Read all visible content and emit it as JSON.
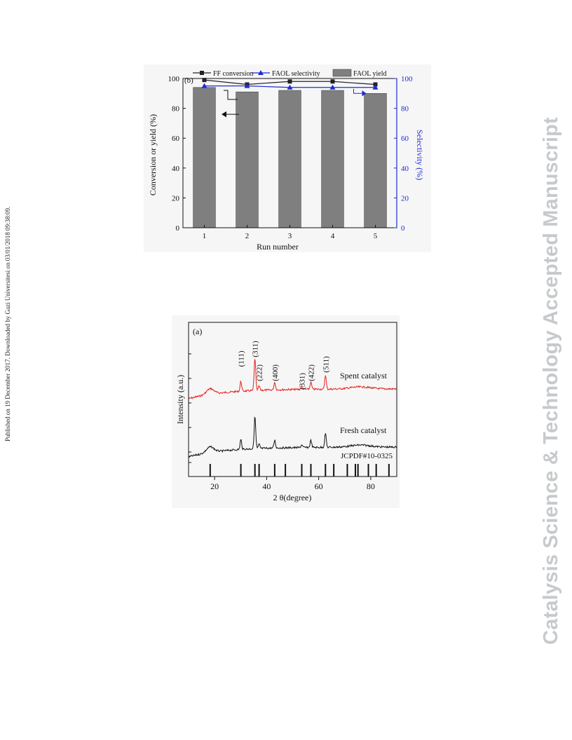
{
  "side_note": "Published on 19 December 2017. Downloaded by Gazi Universitesi on 03/01/2018 09:38:09.",
  "watermark": "Catalysis Science & Technology Accepted Manuscript",
  "chart_data": [
    {
      "type": "bar",
      "panel_label": "(b)",
      "categories": [
        "1",
        "2",
        "3",
        "4",
        "5"
      ],
      "xlabel": "Run number",
      "ylabel": "Conversion or yield (%)",
      "ylabel_right": "Selectivity (%)",
      "ylim": [
        0,
        100
      ],
      "ylim_right": [
        0,
        100
      ],
      "yticks": [
        0,
        20,
        40,
        60,
        80,
        100
      ],
      "series": [
        {
          "name": "FF conversion",
          "kind": "line",
          "marker": "square",
          "color": "#222222",
          "values": [
            99,
            96,
            98,
            98,
            96
          ]
        },
        {
          "name": "FAOL selectivity",
          "kind": "line",
          "marker": "triangle",
          "color": "#1f2bd6",
          "axis": "right",
          "values": [
            95,
            95,
            94,
            94,
            94
          ]
        },
        {
          "name": "FAOL yield",
          "kind": "bar",
          "color": "#7f7f7f",
          "values": [
            94,
            91,
            92,
            92,
            90
          ]
        }
      ],
      "legend_position": "top"
    },
    {
      "type": "line",
      "panel_label": "(a)",
      "xlabel": "2 θ(degree)",
      "ylabel": "Intensity (a.u.)",
      "xlim": [
        10,
        90
      ],
      "xticks": [
        20,
        40,
        60,
        80
      ],
      "series": [
        {
          "name": "Spent catalyst",
          "color": "#e8201c"
        },
        {
          "name": "Fresh catalyst",
          "color": "#111111"
        }
      ],
      "peaks": [
        {
          "label": "(111)",
          "x": 30.1
        },
        {
          "label": "(311)",
          "x": 35.5
        },
        {
          "label": "(222)",
          "x": 37.1
        },
        {
          "label": "(400)",
          "x": 43.1
        },
        {
          "label": "(331)",
          "x": 53.5
        },
        {
          "label": "(422)",
          "x": 57.0
        },
        {
          "label": "(511)",
          "x": 62.6
        }
      ],
      "reference": {
        "name": "JCPDF#10-0325",
        "positions": [
          18.3,
          30.1,
          35.5,
          37.1,
          43.1,
          47.2,
          53.5,
          57.0,
          62.6,
          65.8,
          71.0,
          74.1,
          75.1,
          79.1,
          82.1,
          87.0
        ]
      }
    }
  ]
}
